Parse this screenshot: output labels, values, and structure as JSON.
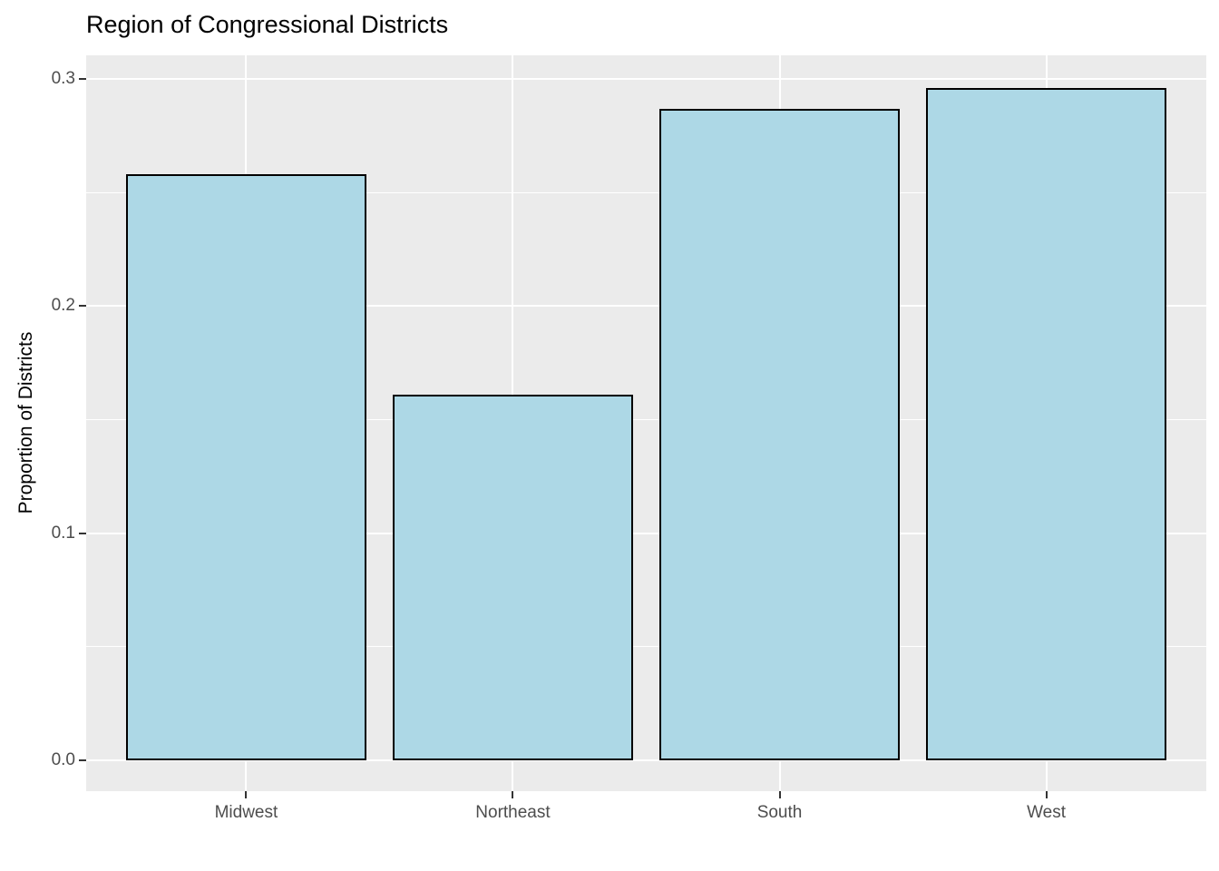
{
  "chart_data": {
    "type": "bar",
    "title": "Region of Congressional Districts",
    "xlabel": "",
    "ylabel": "Proportion of Districts",
    "categories": [
      "Midwest",
      "Northeast",
      "South",
      "West"
    ],
    "values": [
      0.258,
      0.161,
      0.287,
      0.296
    ],
    "y_ticks": [
      0,
      0.1,
      0.2,
      0.3
    ],
    "y_tick_labels": [
      "0.0",
      "0.1",
      "0.2",
      "0.3"
    ],
    "y_minor_ticks": [
      0.05,
      0.15,
      0.25
    ],
    "ylim": [
      -0.0136,
      0.3104
    ],
    "xlim": [
      0.4,
      4.6
    ],
    "bar_rel_width": 0.9,
    "grid": true,
    "legend": "none",
    "colors": {
      "bar_fill": "#ADD8E6",
      "bar_stroke": "#000000",
      "panel_bg": "#EBEBEB",
      "grid_major": "#FFFFFF",
      "grid_minor": "#FFFFFF",
      "tick_label": "#4D4D4D",
      "tick_mark": "#333333",
      "title": "#000000",
      "axis_title": "#000000",
      "background": "#FFFFFF"
    }
  }
}
